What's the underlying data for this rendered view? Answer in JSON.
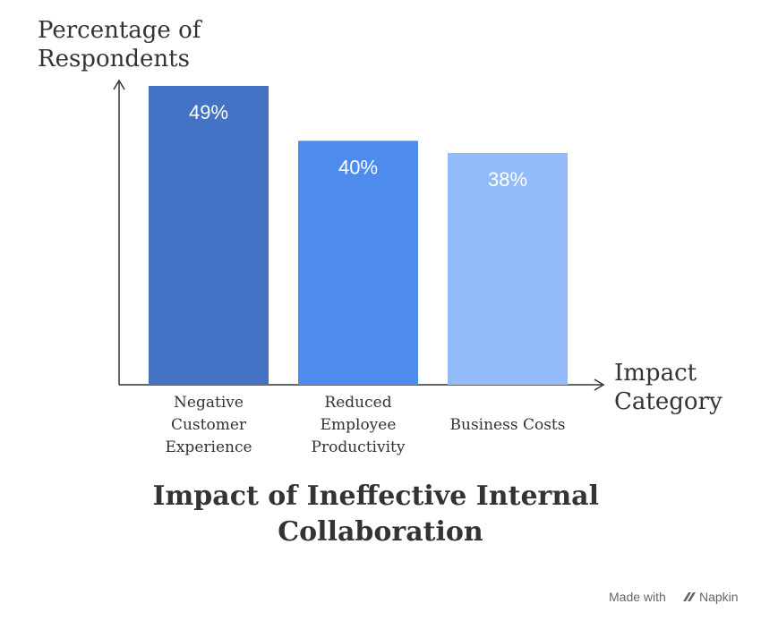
{
  "chart_data": {
    "type": "bar",
    "title": "Impact of Ineffective Internal Collaboration",
    "ylabel": "Percentage of Respondents",
    "xlabel": "Impact Category",
    "categories": [
      "Negative Customer Experience",
      "Reduced Employee Productivity",
      "Business Costs"
    ],
    "values": [
      49,
      40,
      38
    ],
    "data_labels": [
      "49%",
      "40%",
      "38%"
    ],
    "ylim": [
      0,
      50
    ],
    "grid": false,
    "legend": "none",
    "colors": [
      "#4472c4",
      "#4d8cec",
      "#93baf9"
    ]
  },
  "watermark": {
    "text": "Made with",
    "brand": "Napkin",
    "icon": "napkin-logo-icon"
  }
}
